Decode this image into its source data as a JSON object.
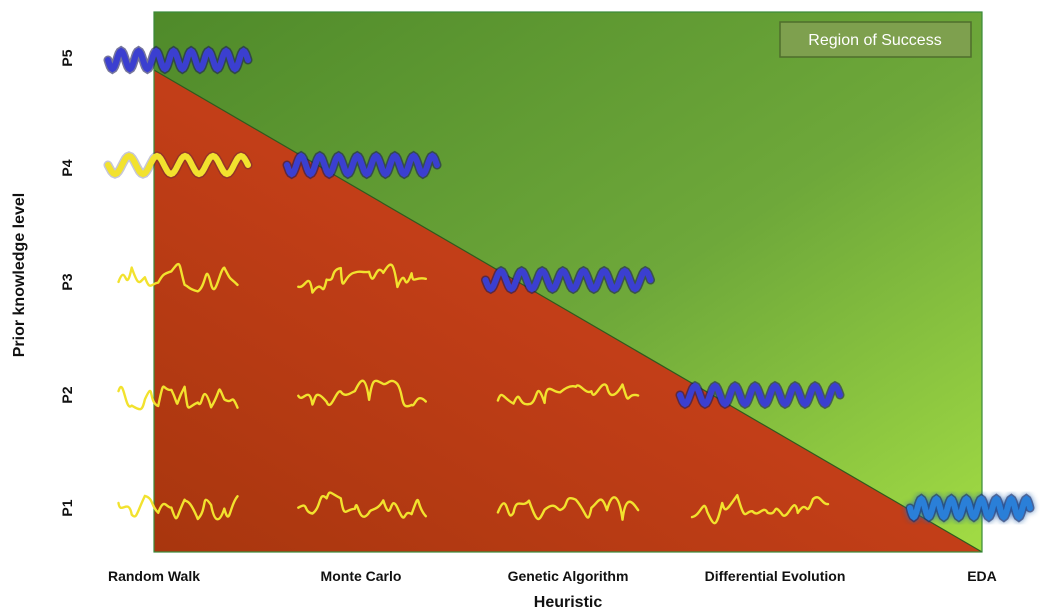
{
  "legend": {
    "label": "Region of Success"
  },
  "x_axis": {
    "title": "Heuristic",
    "ticks": [
      "Random Walk",
      "Monte Carlo",
      "Genetic Algorithm",
      "Differential Evolution",
      "EDA"
    ]
  },
  "y_axis": {
    "title": "Prior knowledge level",
    "ticks": [
      "P1",
      "P2",
      "P3",
      "P4",
      "P5"
    ]
  },
  "colors": {
    "success_region": "#7fb23a",
    "failure_region": "#c8401a",
    "helix_blue": "#3b3fd0",
    "helix_cyan": "#2a7fd8",
    "coil_yellow": "#f2e22e",
    "legend_box": "#7ea04e"
  },
  "structures": [
    {
      "heuristic": "Random Walk",
      "level": "P5",
      "kind": "helix",
      "color": "blue"
    },
    {
      "heuristic": "Random Walk",
      "level": "P4",
      "kind": "helix",
      "color": "yellow"
    },
    {
      "heuristic": "Monte Carlo",
      "level": "P4",
      "kind": "helix",
      "color": "blue"
    },
    {
      "heuristic": "Random Walk",
      "level": "P3",
      "kind": "coil",
      "color": "yellow"
    },
    {
      "heuristic": "Monte Carlo",
      "level": "P3",
      "kind": "coil",
      "color": "yellow"
    },
    {
      "heuristic": "Genetic Algorithm",
      "level": "P3",
      "kind": "helix",
      "color": "blue"
    },
    {
      "heuristic": "Random Walk",
      "level": "P2",
      "kind": "coil",
      "color": "yellow"
    },
    {
      "heuristic": "Monte Carlo",
      "level": "P2",
      "kind": "coil",
      "color": "yellow"
    },
    {
      "heuristic": "Genetic Algorithm",
      "level": "P2",
      "kind": "coil",
      "color": "yellow"
    },
    {
      "heuristic": "Differential Evolution",
      "level": "P2",
      "kind": "helix",
      "color": "blue"
    },
    {
      "heuristic": "Random Walk",
      "level": "P1",
      "kind": "coil",
      "color": "yellow"
    },
    {
      "heuristic": "Monte Carlo",
      "level": "P1",
      "kind": "coil",
      "color": "yellow"
    },
    {
      "heuristic": "Genetic Algorithm",
      "level": "P1",
      "kind": "coil",
      "color": "yellow"
    },
    {
      "heuristic": "Differential Evolution",
      "level": "P1",
      "kind": "coil",
      "color": "yellow"
    },
    {
      "heuristic": "EDA",
      "level": "P1",
      "kind": "helix",
      "color": "cyan"
    }
  ]
}
